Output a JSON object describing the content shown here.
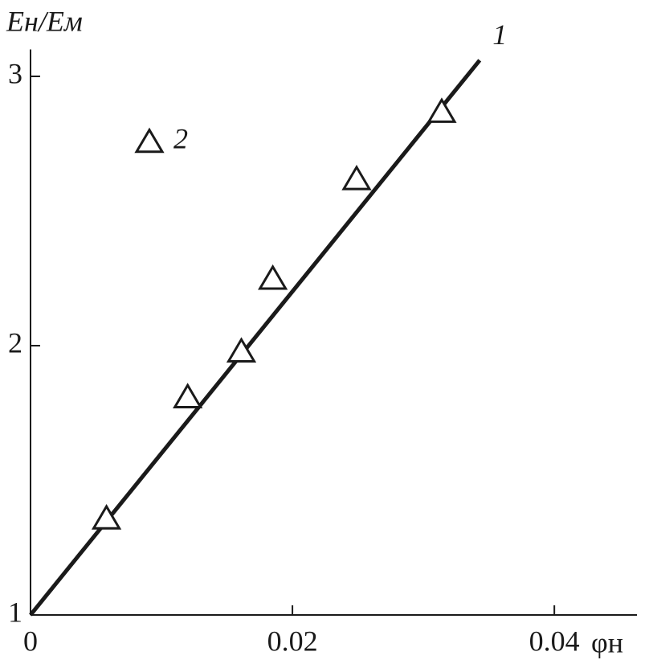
{
  "chart_data": {
    "type": "line",
    "x_label": "φн",
    "y_label": "Eн/Eм",
    "xlim": [
      0,
      0.046
    ],
    "ylim": [
      1,
      3.1
    ],
    "xticks": [
      0,
      0.02,
      0.04
    ],
    "yticks": [
      1,
      2,
      3
    ],
    "series": [
      {
        "name": "1",
        "kind": "line",
        "color": "#1a1a1a",
        "x": [
          0,
          0.0343
        ],
        "values": [
          1,
          3.06
        ]
      },
      {
        "name": "2",
        "kind": "triangles",
        "color": "#1a1a1a",
        "x": [
          0.0058,
          0.012,
          0.0161,
          0.0185,
          0.0249,
          0.0314
        ],
        "values": [
          1.36,
          1.81,
          1.98,
          2.25,
          2.62,
          2.87
        ]
      }
    ]
  }
}
